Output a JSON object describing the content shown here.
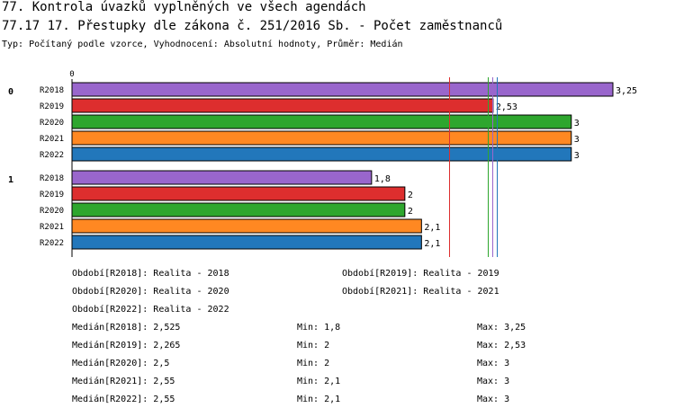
{
  "header": {
    "title": "77. Kontrola úvazků vyplněných ve všech agendách",
    "subtitle": "77.17 17.  Přestupky dle zákona č. 251/2016 Sb. - Počet zaměstnanců",
    "type_line": "Typ: Počítaný podle vzorce, Vyhodnocení: Absolutní hodnoty, Průměr: Medián"
  },
  "chart_data": {
    "type": "bar",
    "orientation": "horizontal",
    "x_axis_zero_label": "0",
    "xlim": [
      0,
      3.25
    ],
    "groups": [
      {
        "label": "0",
        "bars": [
          {
            "series": "R2018",
            "value": 3.25,
            "value_label": "3,25"
          },
          {
            "series": "R2019",
            "value": 2.53,
            "value_label": "2,53"
          },
          {
            "series": "R2020",
            "value": 3,
            "value_label": "3"
          },
          {
            "series": "R2021",
            "value": 3,
            "value_label": "3"
          },
          {
            "series": "R2022",
            "value": 3,
            "value_label": "3"
          }
        ]
      },
      {
        "label": "1",
        "bars": [
          {
            "series": "R2018",
            "value": 1.8,
            "value_label": "1,8"
          },
          {
            "series": "R2019",
            "value": 2,
            "value_label": "2"
          },
          {
            "series": "R2020",
            "value": 2,
            "value_label": "2"
          },
          {
            "series": "R2021",
            "value": 2.1,
            "value_label": "2,1"
          },
          {
            "series": "R2022",
            "value": 2.1,
            "value_label": "2,1"
          }
        ]
      }
    ],
    "series_colors": {
      "R2018": "#9966cc",
      "R2019": "#dd2e2e",
      "R2020": "#2ea62e",
      "R2021": "#ff8822",
      "R2022": "#2277bb"
    },
    "median_lines": [
      {
        "series": "R2018",
        "value": 2.525,
        "color": "#9966cc"
      },
      {
        "series": "R2019",
        "value": 2.265,
        "color": "#dd2e2e"
      },
      {
        "series": "R2020",
        "value": 2.5,
        "color": "#2ea62e"
      },
      {
        "series": "R2021",
        "value": 2.55,
        "color": "#ff8822"
      },
      {
        "series": "R2022",
        "value": 2.55,
        "color": "#2277bb"
      }
    ]
  },
  "legend": {
    "periods": [
      "Období[R2018]: Realita - 2018",
      "Období[R2019]: Realita - 2019",
      "Období[R2020]: Realita - 2020",
      "Období[R2021]: Realita - 2021",
      "Období[R2022]: Realita - 2022"
    ],
    "stats": [
      {
        "median": "Medián[R2018]: 2,525",
        "min": "Min: 1,8",
        "max": "Max: 3,25"
      },
      {
        "median": "Medián[R2019]: 2,265",
        "min": "Min: 2",
        "max": "Max: 2,53"
      },
      {
        "median": "Medián[R2020]: 2,5",
        "min": "Min: 2",
        "max": "Max: 3"
      },
      {
        "median": "Medián[R2021]: 2,55",
        "min": "Min: 2,1",
        "max": "Max: 3"
      },
      {
        "median": "Medián[R2022]: 2,55",
        "min": "Min: 2,1",
        "max": "Max: 3"
      }
    ]
  }
}
